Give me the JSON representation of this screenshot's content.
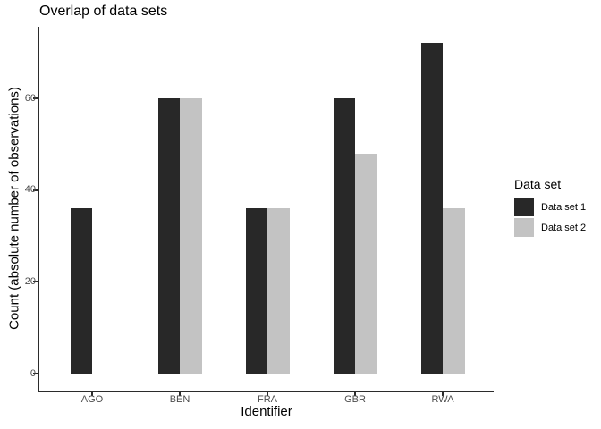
{
  "chart_data": {
    "type": "bar",
    "title": "Overlap of data sets",
    "xlabel": "Identifier",
    "ylabel": "Count (absolute number of observations)",
    "categories": [
      "AGO",
      "BEN",
      "FRA",
      "GBR",
      "RWA"
    ],
    "series": [
      {
        "name": "Data set 1",
        "color": "#282828",
        "values": [
          36,
          60,
          36,
          60,
          72
        ]
      },
      {
        "name": "Data set 2",
        "color": "#c3c3c3",
        "values": [
          null,
          60,
          36,
          48,
          36
        ]
      }
    ],
    "yticks": [
      0,
      20,
      40,
      60
    ],
    "ylim": [
      -3.6,
      75.6
    ],
    "grid": false,
    "bar_layout": "dodge",
    "legend": {
      "title": "Data set",
      "position": "right",
      "entries": [
        "Data set 1",
        "Data set 2"
      ]
    }
  },
  "colors": {
    "axis": "#2b2b2b",
    "tick_label": "#4d4d4d",
    "text": "#000000",
    "background": "#ffffff"
  }
}
